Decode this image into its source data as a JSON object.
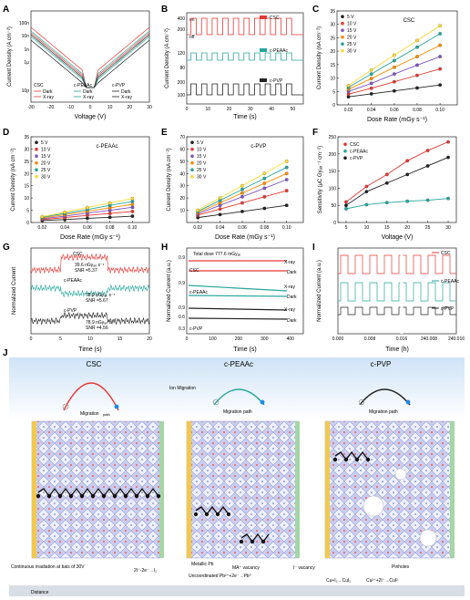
{
  "panel_labels": [
    "A",
    "B",
    "C",
    "D",
    "E",
    "F",
    "G",
    "H",
    "I",
    "J"
  ],
  "chart_data": [
    {
      "id": "A",
      "type": "line",
      "xlabel": "Voltage (V)",
      "ylabel": "Current Density (A cm⁻²)",
      "xlim": [
        -30,
        30
      ],
      "xticks": [
        "-30",
        "-20",
        "-10",
        "0",
        "10",
        "20",
        "30"
      ],
      "yticks": [
        "10p",
        "1n",
        "100n"
      ],
      "yticks_minor": [
        "10n",
        "1μ"
      ],
      "legend": [
        {
          "group": "CSC",
          "dark": "Dark",
          "xray": "X-ray",
          "color": "#e53935"
        },
        {
          "group": "c-PEAAc",
          "dark": "Dark",
          "xray": "X-ray",
          "color": "#26a69a"
        },
        {
          "group": "c-PVP",
          "dark": "Dark",
          "xray": "X-ray",
          "color": "#222222"
        }
      ]
    },
    {
      "id": "B",
      "type": "line",
      "xlabel": "Time (s)",
      "ylabel": "Current Density (A cm⁻²)",
      "xlim": [
        0,
        55
      ],
      "xticks": [
        "0",
        "10",
        "20",
        "30",
        "40",
        "50"
      ],
      "on_label": "on",
      "off_label": "off",
      "yticks_top": [
        "400",
        "200"
      ],
      "yticks_mid": [
        "120",
        "80"
      ],
      "yticks_bot": [
        "200",
        "100"
      ],
      "series": [
        {
          "name": "CSC",
          "color": "#e53935"
        },
        {
          "name": "c-PEAAc",
          "color": "#26a69a"
        },
        {
          "name": "c-PVP",
          "color": "#222222"
        }
      ]
    },
    {
      "id": "C",
      "type": "line",
      "title": "CSC",
      "xlabel": "Dose Rate (mGy s⁻¹)",
      "ylabel": "Current Density (nA cm⁻²)",
      "xlim": [
        0.01,
        0.115
      ],
      "ylim": [
        0,
        35
      ],
      "xticks": [
        "0.02",
        "0.04",
        "0.06",
        "0.08",
        "0.10"
      ],
      "yticks": [
        "0",
        "5",
        "10",
        "15",
        "20",
        "25",
        "30",
        "35"
      ],
      "x": [
        0.02,
        0.04,
        0.06,
        0.08,
        0.1
      ],
      "series": [
        {
          "name": "5 V",
          "color": "#222222",
          "values": [
            3.0,
            4.1,
            5.2,
            6.3,
            7.4
          ]
        },
        {
          "name": "10 V",
          "color": "#e53935",
          "values": [
            4.0,
            6.2,
            8.6,
            11.0,
            13.4
          ]
        },
        {
          "name": "15 V",
          "color": "#7e57c2",
          "values": [
            5.0,
            8.0,
            11.5,
            14.8,
            18.0
          ]
        },
        {
          "name": "20 V",
          "color": "#fb8c00",
          "values": [
            5.8,
            9.8,
            14.0,
            18.0,
            22.2
          ]
        },
        {
          "name": "25 V",
          "color": "#26a69a",
          "values": [
            6.5,
            11.5,
            16.5,
            21.5,
            26.5
          ]
        },
        {
          "name": "30 V",
          "color": "#fdd835",
          "values": [
            7.2,
            13.0,
            18.5,
            24.0,
            29.5
          ]
        }
      ]
    },
    {
      "id": "D",
      "type": "line",
      "title": "c-PEAAc",
      "xlabel": "Dose Rate (mGy s⁻¹)",
      "ylabel": "Current Density (nA cm⁻²)",
      "xlim": [
        0.01,
        0.115
      ],
      "ylim": [
        0,
        35
      ],
      "xticks": [
        "0.02",
        "0.04",
        "0.06",
        "0.08",
        "0.10"
      ],
      "yticks": [
        "0",
        "5",
        "10",
        "15",
        "20",
        "25",
        "30",
        "35"
      ],
      "x": [
        0.02,
        0.04,
        0.06,
        0.08,
        0.1
      ],
      "series": [
        {
          "name": "5 V",
          "color": "#222222",
          "values": [
            0.8,
            1.2,
            1.7,
            2.1,
            2.6
          ]
        },
        {
          "name": "10 V",
          "color": "#e53935",
          "values": [
            1.2,
            2.0,
            2.9,
            3.7,
            4.5
          ]
        },
        {
          "name": "15 V",
          "color": "#7e57c2",
          "values": [
            1.5,
            2.6,
            3.8,
            5.0,
            6.2
          ]
        },
        {
          "name": "20 V",
          "color": "#fb8c00",
          "values": [
            1.8,
            3.2,
            4.6,
            6.0,
            7.4
          ]
        },
        {
          "name": "25 V",
          "color": "#26a69a",
          "values": [
            2.1,
            3.7,
            5.3,
            7.0,
            8.6
          ]
        },
        {
          "name": "30 V",
          "color": "#fdd835",
          "values": [
            2.4,
            4.2,
            6.1,
            8.0,
            9.8
          ]
        }
      ]
    },
    {
      "id": "E",
      "type": "line",
      "title": "c-PVP",
      "xlabel": "Dose Rate (mGy s⁻¹)",
      "ylabel": "Current Density (nA cm⁻²)",
      "xlim": [
        0.01,
        0.115
      ],
      "ylim": [
        0,
        70
      ],
      "xticks": [
        "0.02",
        "0.04",
        "0.06",
        "0.08",
        "0.10"
      ],
      "yticks": [
        "10",
        "20",
        "30",
        "40",
        "50",
        "60",
        "70"
      ],
      "x": [
        0.02,
        0.04,
        0.06,
        0.08,
        0.1
      ],
      "series": [
        {
          "name": "5 V",
          "color": "#222222",
          "values": [
            4,
            6.5,
            9,
            11.5,
            14
          ]
        },
        {
          "name": "10 V",
          "color": "#e53935",
          "values": [
            6,
            11,
            16,
            21,
            26
          ]
        },
        {
          "name": "15 V",
          "color": "#7e57c2",
          "values": [
            7,
            14,
            21,
            28,
            35
          ]
        },
        {
          "name": "20 V",
          "color": "#fb8c00",
          "values": [
            8,
            16,
            24,
            32,
            40
          ]
        },
        {
          "name": "25 V",
          "color": "#26a69a",
          "values": [
            9,
            18,
            27,
            36,
            45
          ]
        },
        {
          "name": "30 V",
          "color": "#fdd835",
          "values": [
            10,
            20,
            30,
            40,
            50
          ]
        }
      ]
    },
    {
      "id": "F",
      "type": "line",
      "xlabel": "Voltage (V)",
      "ylabel": "Sensitivity (μC Gyₐᵢᵣ⁻¹ cm⁻²)",
      "xlim": [
        3,
        32
      ],
      "ylim": [
        0,
        250
      ],
      "xticks": [
        "5",
        "10",
        "15",
        "20",
        "25",
        "30"
      ],
      "yticks": [
        "0",
        "50",
        "100",
        "150",
        "200",
        "250"
      ],
      "x": [
        5,
        10,
        15,
        20,
        25,
        30
      ],
      "series": [
        {
          "name": "CSC",
          "color": "#e53935",
          "values": [
            60,
            105,
            140,
            180,
            210,
            235
          ]
        },
        {
          "name": "c-PEAAc",
          "color": "#26a69a",
          "values": [
            40,
            52,
            58,
            62,
            65,
            70
          ]
        },
        {
          "name": "c-PVP",
          "color": "#222222",
          "values": [
            50,
            90,
            115,
            140,
            165,
            190
          ]
        }
      ]
    },
    {
      "id": "G",
      "type": "line",
      "xlabel": "Time (s)",
      "ylabel": "Normalized Current",
      "xlim": [
        0,
        20
      ],
      "xticks": [
        "0",
        "5",
        "10",
        "15",
        "20"
      ],
      "series": [
        {
          "name": "CSC",
          "color": "#e53935",
          "annot1": "39.6 nGyₐᵢᵣ s⁻¹",
          "annot2": "SNR =5.37"
        },
        {
          "name": "c-PEAAc",
          "color": "#26a69a",
          "annot1": "78.9 nGyₐᵢᵣ s⁻¹",
          "annot2": "SNR =5.67"
        },
        {
          "name": "c-PVP",
          "color": "#222222",
          "annot1": "78.9 nGyₐᵢᵣ s⁻¹",
          "annot2": "SNR =4.56"
        }
      ]
    },
    {
      "id": "H",
      "type": "line",
      "xlabel": "Time (s)",
      "ylabel": "Normalized Current (a.u.)",
      "xlim": [
        0,
        450
      ],
      "xticks": [
        "0",
        "100",
        "200",
        "300",
        "400"
      ],
      "total_dose": "Total dose 777.6 mGyₐᵢᵣ",
      "yticks": [
        "0.9",
        "0.9",
        "0.9",
        "0.6",
        "0.3"
      ],
      "rows": [
        {
          "name": "CSC",
          "xray": "X-ray",
          "dark": "Dark",
          "color": "#e53935"
        },
        {
          "name": "c-PEAAc",
          "xray": "X-ray",
          "dark": "Dark",
          "color": "#26a69a"
        },
        {
          "name": "c-PVP",
          "xray": "X-ray",
          "dark": "Dark",
          "color": "#222222"
        }
      ]
    },
    {
      "id": "I",
      "type": "line",
      "xlabel": "Time (h)",
      "ylabel": "Normalized Current (a.u.)",
      "xticks": [
        "0.000",
        "0.008",
        "0.016",
        "240.008",
        "240.016"
      ],
      "series": [
        {
          "name": "CSC",
          "color": "#e53935"
        },
        {
          "name": "c-PEAAc",
          "color": "#26a69a"
        },
        {
          "name": "c-PVP",
          "color": "#222222"
        }
      ]
    }
  ],
  "schematic": {
    "titles": [
      "CSC",
      "c-PEAAc",
      "c-PVP"
    ],
    "migration_path": "Migration path",
    "migration_path_csc_a": "Migration",
    "migration_path_csc_b": "path",
    "ion_migration": "Ion Migration",
    "bias_note": "Continuous irradiation at bais of 30V",
    "eq_iodide": "2I⁻-2e⁻→I₂",
    "metallic_pb": "Metallic Pb",
    "ma_vacancy": "MA⁺ vacancy",
    "i_vacancy": "I⁻ vacancy",
    "uncoord_pb": "Uncoordinated Pb²⁺+2e⁻→Pb⁰",
    "pinholes": "Pinholes",
    "eq_cu": "Cu+I₂→CuI₂",
    "eq_cu2": "Cu²⁺+2I⁻→CuI²",
    "footer": "Distance"
  }
}
